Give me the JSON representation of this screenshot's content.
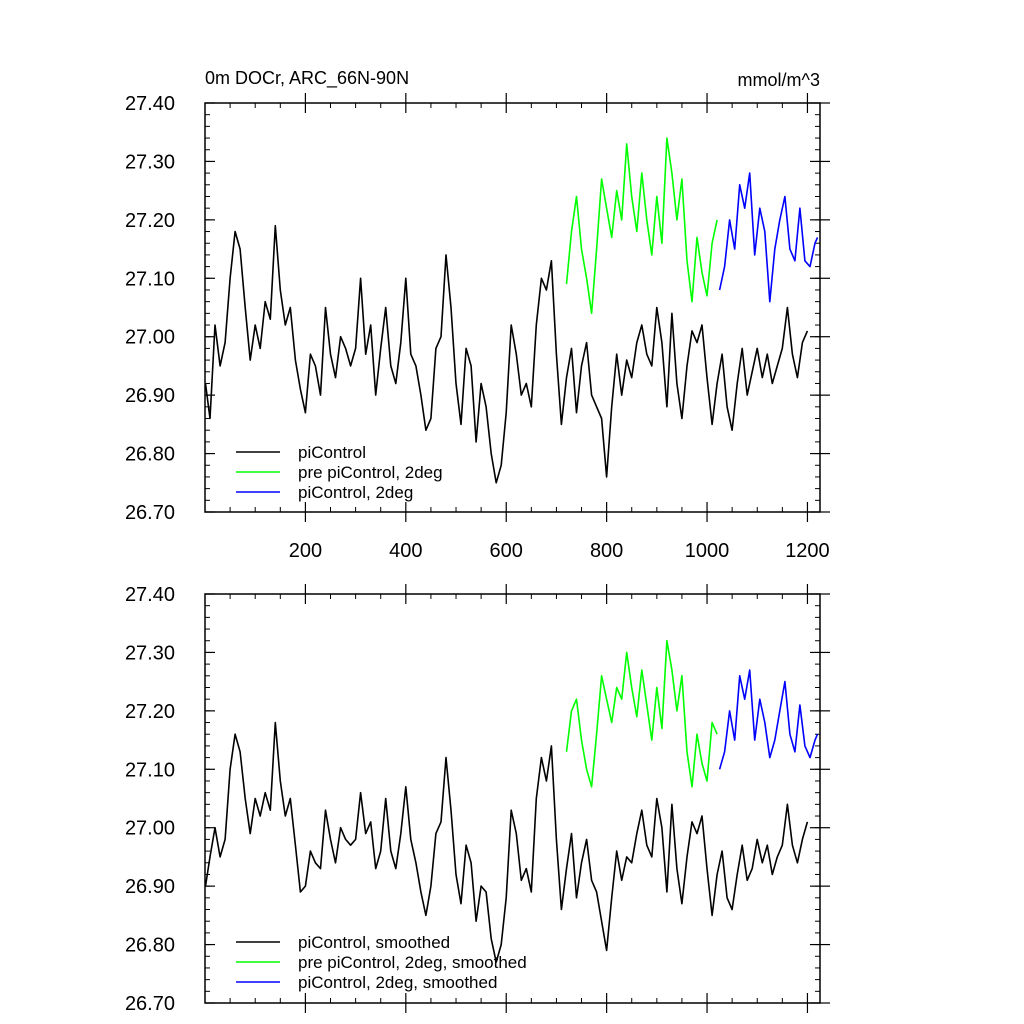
{
  "chart_data": [
    {
      "type": "line",
      "title": "0m DOCr, ARC_66N-90N",
      "units": "mmol/m^3",
      "xlim": [
        0,
        1225
      ],
      "ylim": [
        26.7,
        27.4
      ],
      "xticks": [
        200,
        400,
        600,
        800,
        1000,
        1200
      ],
      "xtick_labels": [
        "200",
        "400",
        "600",
        "800",
        "1000",
        "1200"
      ],
      "yticks": [
        26.7,
        26.8,
        26.9,
        27.0,
        27.1,
        27.2,
        27.3,
        27.4
      ],
      "ytick_labels": [
        "26.70",
        "26.80",
        "26.90",
        "27.00",
        "27.10",
        "27.20",
        "27.30",
        "27.40"
      ],
      "legend_position": "lower-left",
      "series": [
        {
          "name": "piControl",
          "color": "#000000",
          "x": [
            1,
            10,
            20,
            30,
            40,
            50,
            60,
            70,
            80,
            90,
            100,
            110,
            120,
            130,
            140,
            150,
            160,
            170,
            180,
            190,
            200,
            210,
            220,
            230,
            240,
            250,
            260,
            270,
            280,
            290,
            300,
            310,
            320,
            330,
            340,
            350,
            360,
            370,
            380,
            390,
            400,
            410,
            420,
            430,
            440,
            450,
            460,
            470,
            480,
            490,
            500,
            510,
            520,
            530,
            540,
            550,
            560,
            570,
            580,
            590,
            600,
            610,
            620,
            630,
            640,
            650,
            660,
            670,
            680,
            690,
            700,
            710,
            720,
            730,
            740,
            750,
            760,
            770,
            780,
            790,
            800,
            810,
            820,
            830,
            840,
            850,
            860,
            870,
            880,
            890,
            900,
            910,
            920,
            930,
            940,
            950,
            960,
            970,
            980,
            990,
            1000,
            1010,
            1020,
            1030,
            1040,
            1050,
            1060,
            1070,
            1080,
            1090,
            1100,
            1110,
            1120,
            1130,
            1140,
            1150,
            1160,
            1170,
            1180,
            1190,
            1200
          ],
          "y": [
            26.92,
            26.86,
            27.02,
            26.95,
            26.99,
            27.1,
            27.18,
            27.15,
            27.05,
            26.96,
            27.02,
            26.98,
            27.06,
            27.03,
            27.19,
            27.08,
            27.02,
            27.05,
            26.96,
            26.91,
            26.87,
            26.97,
            26.95,
            26.9,
            27.05,
            26.97,
            26.93,
            27.0,
            26.98,
            26.95,
            26.98,
            27.1,
            26.97,
            27.02,
            26.9,
            26.98,
            27.05,
            26.95,
            26.92,
            26.99,
            27.1,
            26.97,
            26.95,
            26.9,
            26.84,
            26.86,
            26.98,
            27.0,
            27.14,
            27.05,
            26.92,
            26.85,
            26.98,
            26.95,
            26.82,
            26.92,
            26.88,
            26.8,
            26.75,
            26.78,
            26.87,
            27.02,
            26.97,
            26.9,
            26.92,
            26.88,
            27.02,
            27.1,
            27.08,
            27.13,
            26.97,
            26.85,
            26.93,
            26.98,
            26.87,
            26.95,
            26.99,
            26.9,
            26.88,
            26.86,
            26.76,
            26.88,
            26.97,
            26.9,
            26.96,
            26.93,
            26.99,
            27.02,
            26.97,
            26.95,
            27.05,
            26.99,
            26.88,
            27.04,
            26.92,
            26.86,
            26.95,
            27.01,
            26.99,
            27.02,
            26.93,
            26.85,
            26.92,
            26.97,
            26.88,
            26.84,
            26.92,
            26.98,
            26.9,
            26.94,
            26.98,
            26.93,
            26.97,
            26.92,
            26.95,
            26.98,
            27.05,
            26.97,
            26.93,
            26.99,
            27.01
          ]
        },
        {
          "name": "pre piControl, 2deg",
          "color": "#00ff00",
          "x": [
            720,
            730,
            740,
            750,
            760,
            770,
            780,
            790,
            800,
            810,
            820,
            830,
            840,
            850,
            860,
            870,
            880,
            890,
            900,
            910,
            920,
            930,
            940,
            950,
            960,
            970,
            980,
            990,
            1000,
            1010,
            1020
          ],
          "y": [
            27.09,
            27.18,
            27.24,
            27.15,
            27.1,
            27.04,
            27.15,
            27.27,
            27.22,
            27.17,
            27.25,
            27.2,
            27.33,
            27.24,
            27.18,
            27.28,
            27.2,
            27.14,
            27.24,
            27.16,
            27.34,
            27.28,
            27.2,
            27.27,
            27.13,
            27.06,
            27.17,
            27.11,
            27.07,
            27.16,
            27.2
          ]
        },
        {
          "name": "piControl, 2deg",
          "color": "#0000ff",
          "x": [
            1025,
            1035,
            1045,
            1055,
            1065,
            1075,
            1085,
            1095,
            1105,
            1115,
            1125,
            1135,
            1145,
            1155,
            1165,
            1175,
            1185,
            1195,
            1205,
            1215,
            1220
          ],
          "y": [
            27.08,
            27.12,
            27.2,
            27.15,
            27.26,
            27.22,
            27.28,
            27.14,
            27.22,
            27.18,
            27.06,
            27.15,
            27.2,
            27.24,
            27.15,
            27.13,
            27.22,
            27.13,
            27.12,
            27.16,
            27.17
          ]
        }
      ]
    },
    {
      "type": "line",
      "xlim": [
        0,
        1225
      ],
      "ylim": [
        26.7,
        27.4
      ],
      "xticks": [
        200,
        400,
        600,
        800,
        1000,
        1200
      ],
      "yticks": [
        26.7,
        26.8,
        26.9,
        27.0,
        27.1,
        27.2,
        27.3,
        27.4
      ],
      "ytick_labels": [
        "26.70",
        "26.80",
        "26.90",
        "27.00",
        "27.10",
        "27.20",
        "27.30",
        "27.40"
      ],
      "legend_position": "lower-left",
      "series": [
        {
          "name": "piControl, smoothed",
          "color": "#000000",
          "x": [
            1,
            10,
            20,
            30,
            40,
            50,
            60,
            70,
            80,
            90,
            100,
            110,
            120,
            130,
            140,
            150,
            160,
            170,
            180,
            190,
            200,
            210,
            220,
            230,
            240,
            250,
            260,
            270,
            280,
            290,
            300,
            310,
            320,
            330,
            340,
            350,
            360,
            370,
            380,
            390,
            400,
            410,
            420,
            430,
            440,
            450,
            460,
            470,
            480,
            490,
            500,
            510,
            520,
            530,
            540,
            550,
            560,
            570,
            580,
            590,
            600,
            610,
            620,
            630,
            640,
            650,
            660,
            670,
            680,
            690,
            700,
            710,
            720,
            730,
            740,
            750,
            760,
            770,
            780,
            790,
            800,
            810,
            820,
            830,
            840,
            850,
            860,
            870,
            880,
            890,
            900,
            910,
            920,
            930,
            940,
            950,
            960,
            970,
            980,
            990,
            1000,
            1010,
            1020,
            1030,
            1040,
            1050,
            1060,
            1070,
            1080,
            1090,
            1100,
            1110,
            1120,
            1130,
            1140,
            1150,
            1160,
            1170,
            1180,
            1190,
            1200
          ],
          "y": [
            26.9,
            26.95,
            27.0,
            26.95,
            26.98,
            27.1,
            27.16,
            27.13,
            27.05,
            26.99,
            27.05,
            27.02,
            27.06,
            27.03,
            27.18,
            27.08,
            27.02,
            27.05,
            26.97,
            26.89,
            26.9,
            26.96,
            26.94,
            26.93,
            27.03,
            26.98,
            26.94,
            27.0,
            26.98,
            26.97,
            26.98,
            27.06,
            26.99,
            27.01,
            26.93,
            26.96,
            27.05,
            26.96,
            26.93,
            26.99,
            27.07,
            26.98,
            26.94,
            26.89,
            26.85,
            26.9,
            26.99,
            27.01,
            27.12,
            27.03,
            26.92,
            26.87,
            26.97,
            26.94,
            26.84,
            26.9,
            26.89,
            26.81,
            26.77,
            26.8,
            26.88,
            27.03,
            26.99,
            26.91,
            26.93,
            26.89,
            27.05,
            27.12,
            27.08,
            27.14,
            26.98,
            26.86,
            26.93,
            26.99,
            26.88,
            26.94,
            26.98,
            26.91,
            26.89,
            26.84,
            26.79,
            26.88,
            26.96,
            26.91,
            26.95,
            26.94,
            26.99,
            27.03,
            26.97,
            26.95,
            27.05,
            27.0,
            26.89,
            27.04,
            26.93,
            26.87,
            26.95,
            27.01,
            26.99,
            27.02,
            26.93,
            26.85,
            26.92,
            26.96,
            26.88,
            26.86,
            26.92,
            26.97,
            26.91,
            26.93,
            26.98,
            26.94,
            26.97,
            26.92,
            26.95,
            26.97,
            27.04,
            26.97,
            26.94,
            26.98,
            27.01
          ]
        },
        {
          "name": "pre piControl, 2deg, smoothed",
          "color": "#00ff00",
          "x": [
            720,
            730,
            740,
            750,
            760,
            770,
            780,
            790,
            800,
            810,
            820,
            830,
            840,
            850,
            860,
            870,
            880,
            890,
            900,
            910,
            920,
            930,
            940,
            950,
            960,
            970,
            980,
            990,
            1000,
            1010,
            1020
          ],
          "y": [
            27.13,
            27.2,
            27.22,
            27.15,
            27.1,
            27.07,
            27.16,
            27.26,
            27.22,
            27.18,
            27.24,
            27.22,
            27.3,
            27.24,
            27.19,
            27.27,
            27.21,
            27.15,
            27.24,
            27.17,
            27.32,
            27.27,
            27.2,
            27.26,
            27.13,
            27.07,
            27.16,
            27.11,
            27.08,
            27.18,
            27.16
          ]
        },
        {
          "name": "piControl, 2deg, smoothed",
          "color": "#0000ff",
          "x": [
            1025,
            1035,
            1045,
            1055,
            1065,
            1075,
            1085,
            1095,
            1105,
            1115,
            1125,
            1135,
            1145,
            1155,
            1165,
            1175,
            1185,
            1195,
            1205,
            1215,
            1220
          ],
          "y": [
            27.1,
            27.13,
            27.2,
            27.15,
            27.26,
            27.22,
            27.27,
            27.15,
            27.22,
            27.18,
            27.12,
            27.15,
            27.2,
            27.25,
            27.16,
            27.13,
            27.21,
            27.14,
            27.12,
            27.15,
            27.16
          ]
        }
      ]
    }
  ]
}
